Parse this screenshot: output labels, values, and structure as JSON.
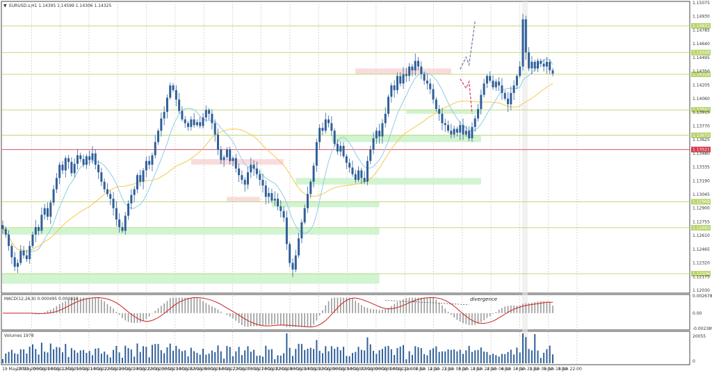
{
  "header": {
    "symbol_line": "EURUSD.s,H1  1.14395 1.14599 1.14306 1.14325"
  },
  "colors": {
    "candle": "#2f5f9a",
    "ma_fast": "#8ccde8",
    "ma_slow": "#f2c94c",
    "hline": "#b7d36a",
    "hline_red": "#d23a4a",
    "zone_green": "#c9f2c9",
    "zone_pink": "#f7d6d6",
    "forecast_up": "#7f8aa8",
    "forecast_down": "#e0507a",
    "macd_hist": "#9a9a9a",
    "macd_signal": "#c81e1e"
  },
  "chart_data": [
    {
      "type": "candlestick",
      "title": "EURUSD.s,H1",
      "ohlc_readout": [
        "1.14395",
        "1.14599",
        "1.14306",
        "1.14325"
      ],
      "ylim": [
        1.1203,
        1.15075
      ],
      "y_ticks": [
        "1.15075",
        "1.14930",
        "1.14785",
        "1.14640",
        "1.14495",
        "1.14350",
        "1.14205",
        "1.14060",
        "1.13915",
        "1.13770",
        "1.13625",
        "1.13480",
        "1.13335",
        "1.13190",
        "1.13045",
        "1.12900",
        "1.12755",
        "1.12610",
        "1.12465",
        "1.12320",
        "1.12175",
        "1.12030"
      ],
      "x_ticks": [
        "19 May 2025",
        "20 May 06:00",
        "20 May 14:00",
        "20 May 22:00",
        "21 May 06:00",
        "21 May 14:00",
        "21 May 22:00",
        "22 May 06:00",
        "22 May 14:00",
        "22 May 22:00",
        "23 May 06:00",
        "23 May 14:00",
        "23 May 22:00",
        "26 May 06:00",
        "26 May 14:00",
        "26 May 22:00",
        "27 May 06:00",
        "27 May 14:00",
        "27 May 22:00",
        "28 May 06:00",
        "28 May 14:00",
        "28 May 22:00",
        "29 May 06:00",
        "29 May 14:00",
        "29 May 22:00",
        "30 May 06:00",
        "30 May 14:00",
        "30 May 22:00",
        "2 Jun 06:00",
        "2 Jun 14:00",
        "2 Jun 22:00",
        "3 Jun 06:00",
        "3 Jun 14:00",
        "3 Jun 22:00",
        "4 Jun 06:00",
        "4 Jun 14:00",
        "4 Jun 22:00",
        "5 Jun 06:00",
        "5 Jun 14:00",
        "5 Jun 22:00"
      ],
      "closes": [
        1.1268,
        1.1262,
        1.125,
        1.1238,
        1.1228,
        1.1232,
        1.1245,
        1.124,
        1.1236,
        1.125,
        1.1262,
        1.127,
        1.1266,
        1.1283,
        1.129,
        1.1281,
        1.1296,
        1.131,
        1.1322,
        1.1336,
        1.133,
        1.1343,
        1.1339,
        1.1327,
        1.1337,
        1.1346,
        1.1342,
        1.1336,
        1.1345,
        1.1341,
        1.1348,
        1.1336,
        1.1328,
        1.1318,
        1.131,
        1.1305,
        1.13,
        1.129,
        1.1278,
        1.127,
        1.1266,
        1.1282,
        1.1295,
        1.1304,
        1.131,
        1.1325,
        1.1318,
        1.133,
        1.134,
        1.1336,
        1.1346,
        1.136,
        1.1372,
        1.1385,
        1.1392,
        1.1407,
        1.142,
        1.1415,
        1.1405,
        1.1393,
        1.1384,
        1.138,
        1.1376,
        1.1384,
        1.1378,
        1.1381,
        1.1377,
        1.1386,
        1.1394,
        1.139,
        1.138,
        1.1368,
        1.1352,
        1.1341,
        1.1344,
        1.1352,
        1.134,
        1.1343,
        1.1332,
        1.1325,
        1.132,
        1.1315,
        1.1328,
        1.1336,
        1.1332,
        1.1326,
        1.132,
        1.1314,
        1.1302,
        1.1306,
        1.1298,
        1.13,
        1.1292,
        1.1287,
        1.128,
        1.1252,
        1.1232,
        1.1225,
        1.124,
        1.1258,
        1.1275,
        1.129,
        1.1305,
        1.1318,
        1.1335,
        1.136,
        1.1375,
        1.1372,
        1.1384,
        1.138,
        1.1372,
        1.1358,
        1.135,
        1.1356,
        1.1345,
        1.1338,
        1.1333,
        1.1326,
        1.132,
        1.133,
        1.1322,
        1.1318,
        1.134,
        1.1352,
        1.1364,
        1.1372,
        1.1366,
        1.138,
        1.139,
        1.1408,
        1.142,
        1.1415,
        1.143,
        1.1422,
        1.1432,
        1.143,
        1.144,
        1.1436,
        1.1446,
        1.144,
        1.1432,
        1.1425,
        1.1422,
        1.1416,
        1.1405,
        1.1395,
        1.139,
        1.138,
        1.1378,
        1.1372,
        1.1368,
        1.1374,
        1.137,
        1.1378,
        1.1368,
        1.1372,
        1.1364,
        1.1376,
        1.1385,
        1.1395,
        1.141,
        1.1422,
        1.143,
        1.1425,
        1.1418,
        1.1424,
        1.142,
        1.1412,
        1.1406,
        1.14,
        1.1412,
        1.142,
        1.143,
        1.144,
        1.149,
        1.1455,
        1.1438,
        1.1445,
        1.1438,
        1.1446,
        1.1443,
        1.144,
        1.1445,
        1.1436,
        1.14325
      ],
      "horizontal_levels": [
        {
          "label": "1.14831",
          "color": "hline"
        },
        {
          "label": "1.14548",
          "color": "hline"
        },
        {
          "label": "1.14318",
          "color": "hline"
        },
        {
          "label": "1.13941",
          "color": "hline"
        },
        {
          "label": "1.13672",
          "color": "hline"
        },
        {
          "label": "1.13521",
          "color": "hline_red"
        },
        {
          "label": "1.12968",
          "color": "hline"
        },
        {
          "label": "1.12693",
          "color": "hline"
        },
        {
          "label": "1.12206",
          "color": "hline"
        }
      ],
      "zones": [
        {
          "color": "zone_green",
          "from_index": 0,
          "to_index": 126,
          "price_low": 1.121,
          "price_high": 1.1221
        },
        {
          "color": "zone_green",
          "from_index": 0,
          "to_index": 126,
          "price_low": 1.1262,
          "price_high": 1.1269
        },
        {
          "color": "zone_green",
          "from_index": 90,
          "to_index": 126,
          "price_low": 1.1291,
          "price_high": 1.1297
        },
        {
          "color": "zone_green",
          "from_index": 98,
          "to_index": 160,
          "price_low": 1.1315,
          "price_high": 1.1322
        },
        {
          "color": "zone_green",
          "from_index": 110,
          "to_index": 160,
          "price_low": 1.136,
          "price_high": 1.1367
        },
        {
          "color": "zone_green",
          "from_index": 135,
          "to_index": 160,
          "price_low": 1.139,
          "price_high": 1.1394
        },
        {
          "color": "zone_pink",
          "from_index": 63,
          "to_index": 94,
          "price_low": 1.1336,
          "price_high": 1.1342
        },
        {
          "color": "zone_pink",
          "from_index": 75,
          "to_index": 86,
          "price_low": 1.1297,
          "price_high": 1.1302
        },
        {
          "color": "zone_pink",
          "from_index": 118,
          "to_index": 150,
          "price_low": 1.1432,
          "price_high": 1.1438
        }
      ],
      "forecast_paths": [
        {
          "color": "forecast_up",
          "points": [
            [
              153,
              1.1437
            ],
            [
              155,
              1.145
            ],
            [
              156,
              1.1442
            ],
            [
              158,
              1.1488
            ]
          ]
        },
        {
          "color": "forecast_down",
          "points": [
            [
              153,
              1.1427
            ],
            [
              155,
              1.1417
            ],
            [
              156,
              1.1424
            ],
            [
              157,
              1.139
            ]
          ]
        }
      ]
    },
    {
      "type": "bar",
      "title": "MACD(12,26,9) 0.000495 0.000816",
      "ylim": [
        -0.002389,
        0.002678
      ],
      "y_ticks": [
        "0.002678",
        "0.00",
        "-0.002389"
      ],
      "annotation": "divergence"
    },
    {
      "type": "bar",
      "title": "Volumes 1978",
      "y_ticks": [
        "20055",
        "0"
      ]
    }
  ]
}
